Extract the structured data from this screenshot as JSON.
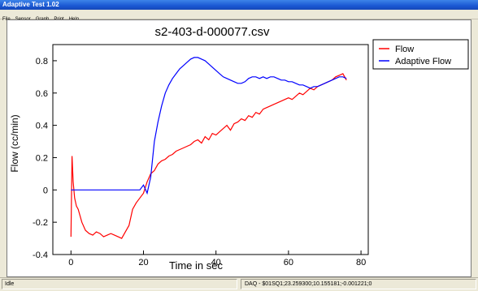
{
  "window": {
    "title": "Adaptive Test 1.02"
  },
  "menu": [
    "File",
    "Sensor",
    "Graph",
    "Print",
    "Help"
  ],
  "status": {
    "left": "Idle",
    "right": "DAQ - $01SQ1;23.259300;10.155181;-0.001221;0"
  },
  "chart_data": {
    "type": "line",
    "title": "s2-403-d-000077.csv",
    "xlabel": "Time in sec",
    "ylabel": "Flow (cc/min)",
    "xlim": [
      -5,
      82
    ],
    "ylim": [
      -0.4,
      0.9
    ],
    "xticks": [
      0,
      20,
      40,
      60,
      80
    ],
    "yticks": [
      -0.4,
      -0.2,
      0,
      0.2,
      0.4,
      0.6,
      0.8
    ],
    "ytick_labels": [
      "-0.4",
      "-0.2",
      "0",
      "0.2",
      "0.4",
      "0.6",
      "0.8"
    ],
    "grid": false,
    "legend": "right",
    "series": [
      {
        "name": "Flow",
        "color": "#ff0000",
        "x": [
          0,
          0.3,
          0.6,
          1,
          1.5,
          2,
          3,
          4,
          5,
          6,
          7,
          8,
          9,
          10,
          11,
          12,
          13,
          14,
          15,
          16,
          17,
          18,
          19,
          20,
          21,
          22,
          23,
          24,
          25,
          26,
          27,
          28,
          29,
          30,
          31,
          32,
          33,
          34,
          35,
          36,
          37,
          38,
          39,
          40,
          41,
          42,
          43,
          44,
          45,
          46,
          47,
          48,
          49,
          50,
          51,
          52,
          53,
          54,
          55,
          56,
          57,
          58,
          59,
          60,
          61,
          62,
          63,
          64,
          65,
          66,
          67,
          68,
          69,
          70,
          71,
          72,
          73,
          74,
          75,
          76
        ],
        "y": [
          -0.29,
          0.21,
          0.05,
          -0.05,
          -0.1,
          -0.12,
          -0.2,
          -0.25,
          -0.27,
          -0.28,
          -0.26,
          -0.27,
          -0.29,
          -0.28,
          -0.27,
          -0.28,
          -0.29,
          -0.3,
          -0.26,
          -0.22,
          -0.12,
          -0.08,
          -0.05,
          -0.02,
          0.05,
          0.1,
          0.12,
          0.16,
          0.18,
          0.19,
          0.21,
          0.22,
          0.24,
          0.25,
          0.26,
          0.27,
          0.28,
          0.3,
          0.31,
          0.29,
          0.33,
          0.31,
          0.35,
          0.34,
          0.36,
          0.38,
          0.4,
          0.37,
          0.41,
          0.42,
          0.44,
          0.43,
          0.46,
          0.45,
          0.48,
          0.47,
          0.5,
          0.51,
          0.52,
          0.53,
          0.54,
          0.55,
          0.56,
          0.57,
          0.56,
          0.58,
          0.6,
          0.59,
          0.61,
          0.63,
          0.62,
          0.64,
          0.65,
          0.66,
          0.67,
          0.68,
          0.7,
          0.71,
          0.72,
          0.68
        ]
      },
      {
        "name": "Adaptive Flow",
        "color": "#0000ff",
        "x": [
          0,
          19,
          20,
          21,
          22,
          23,
          24,
          25,
          26,
          27,
          28,
          29,
          30,
          31,
          32,
          33,
          34,
          35,
          36,
          37,
          38,
          39,
          40,
          41,
          42,
          43,
          44,
          45,
          46,
          47,
          48,
          49,
          50,
          51,
          52,
          53,
          54,
          55,
          56,
          57,
          58,
          59,
          60,
          61,
          62,
          63,
          64,
          65,
          66,
          67,
          68,
          69,
          70,
          71,
          72,
          73,
          74,
          75,
          76
        ],
        "y": [
          0,
          0,
          0.03,
          -0.02,
          0.08,
          0.3,
          0.42,
          0.52,
          0.6,
          0.65,
          0.69,
          0.72,
          0.75,
          0.77,
          0.79,
          0.81,
          0.82,
          0.82,
          0.81,
          0.8,
          0.78,
          0.76,
          0.74,
          0.72,
          0.7,
          0.69,
          0.68,
          0.67,
          0.66,
          0.66,
          0.67,
          0.69,
          0.7,
          0.7,
          0.69,
          0.7,
          0.69,
          0.7,
          0.7,
          0.69,
          0.68,
          0.68,
          0.67,
          0.67,
          0.66,
          0.65,
          0.65,
          0.64,
          0.63,
          0.64,
          0.64,
          0.65,
          0.66,
          0.67,
          0.68,
          0.69,
          0.7,
          0.7,
          0.69
        ]
      }
    ]
  }
}
